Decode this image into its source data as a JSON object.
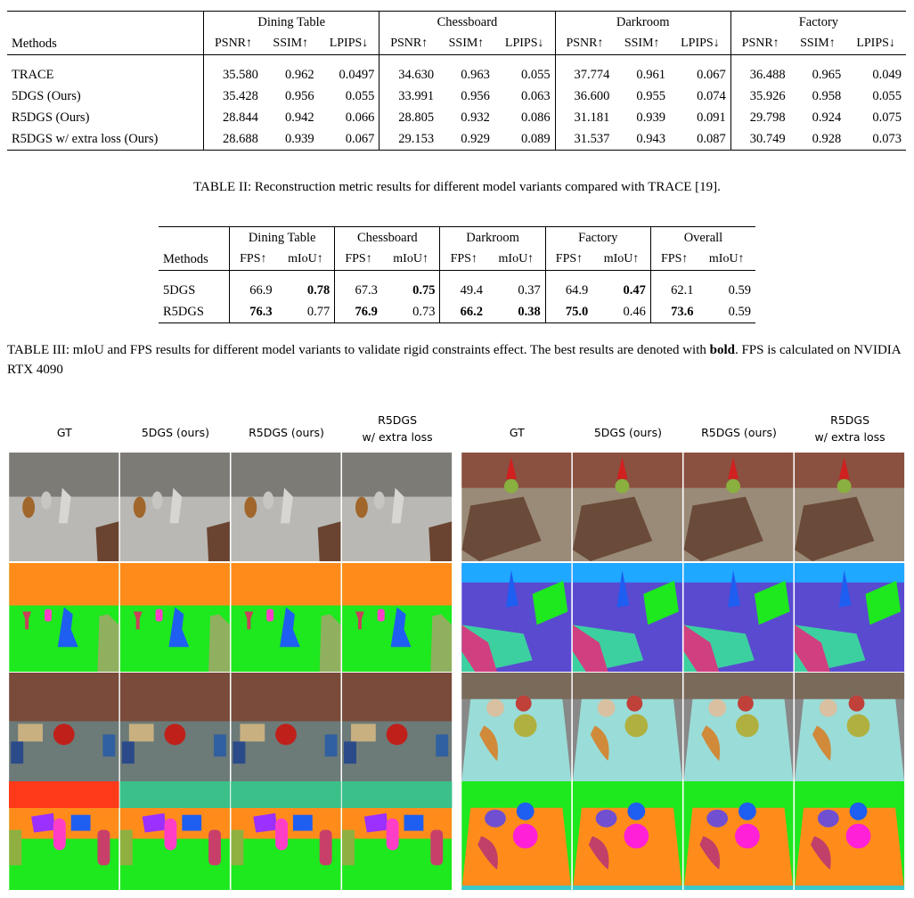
{
  "table2": {
    "groups": [
      "Dining Table",
      "Chessboard",
      "Darkroom",
      "Factory"
    ],
    "methods_label": "Methods",
    "metrics": [
      "PSNR↑",
      "SSIM↑",
      "LPIPS↓"
    ],
    "rows": [
      {
        "method": "TRACE",
        "values": [
          "35.580",
          "0.962",
          "0.0497",
          "34.630",
          "0.963",
          "0.055",
          "37.774",
          "0.961",
          "0.067",
          "36.488",
          "0.965",
          "0.049"
        ]
      },
      {
        "method": "5DGS (Ours)",
        "values": [
          "35.428",
          "0.956",
          "0.055",
          "33.991",
          "0.956",
          "0.063",
          "36.600",
          "0.955",
          "0.074",
          "35.926",
          "0.958",
          "0.055"
        ]
      },
      {
        "method": "R5DGS (Ours)",
        "values": [
          "28.844",
          "0.942",
          "0.066",
          "28.805",
          "0.932",
          "0.086",
          "31.181",
          "0.939",
          "0.091",
          "29.798",
          "0.924",
          "0.075"
        ]
      },
      {
        "method": "R5DGS w/ extra loss (Ours)",
        "values": [
          "28.688",
          "0.939",
          "0.067",
          "29.153",
          "0.929",
          "0.089",
          "31.537",
          "0.943",
          "0.087",
          "30.749",
          "0.928",
          "0.073"
        ]
      }
    ],
    "caption": "TABLE II: Reconstruction metric results for different model variants compared with TRACE [19]."
  },
  "table3": {
    "groups": [
      "Dining Table",
      "Chessboard",
      "Darkroom",
      "Factory",
      "Overall"
    ],
    "methods_label": "Methods",
    "metrics": [
      "FPS↑",
      "mIoU↑"
    ],
    "rows": [
      {
        "method": "5DGS",
        "values": [
          "66.9",
          "0.78",
          "67.3",
          "0.75",
          "49.4",
          "0.37",
          "64.9",
          "0.47",
          "62.1",
          "0.59"
        ],
        "bold": [
          1,
          3,
          7
        ]
      },
      {
        "method": "R5DGS",
        "values": [
          "76.3",
          "0.77",
          "76.9",
          "0.73",
          "66.2",
          "0.38",
          "75.0",
          "0.46",
          "73.6",
          "0.59"
        ],
        "bold": [
          0,
          2,
          4,
          5,
          6,
          8
        ]
      }
    ],
    "caption": {
      "before": "TABLE III: mIoU and FPS results for different model variants to validate rigid constraints effect. The best results are denoted with ",
      "bold": "bold",
      "after": ". FPS is calculated on NVIDIA RTX 4090"
    }
  },
  "figure": {
    "column_labels": [
      [
        "GT"
      ],
      [
        "5DGS (ours)"
      ],
      [
        "R5DGS (ours)"
      ],
      [
        "R5DGS",
        "w/ extra loss"
      ]
    ]
  }
}
